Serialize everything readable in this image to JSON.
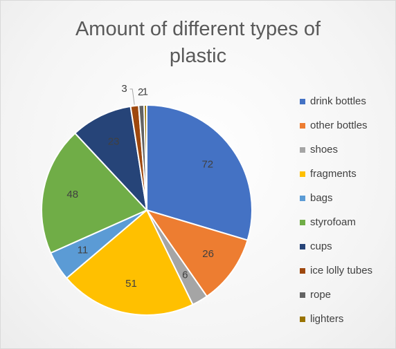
{
  "chart_data": {
    "type": "pie",
    "title": "Amount of different types of plastic",
    "categories": [
      "drink bottles",
      "other bottles",
      "shoes",
      "fragments",
      "bags",
      "styrofoam",
      "cups",
      "ice lolly tubes",
      "rope",
      "lighters"
    ],
    "values": [
      72,
      26,
      6,
      51,
      11,
      48,
      23,
      3,
      2,
      1
    ],
    "colors": [
      "#4472c4",
      "#ed7d31",
      "#a5a5a5",
      "#ffc000",
      "#5b9bd5",
      "#70ad47",
      "#264478",
      "#9e480e",
      "#636363",
      "#997300"
    ],
    "legend": "right"
  }
}
